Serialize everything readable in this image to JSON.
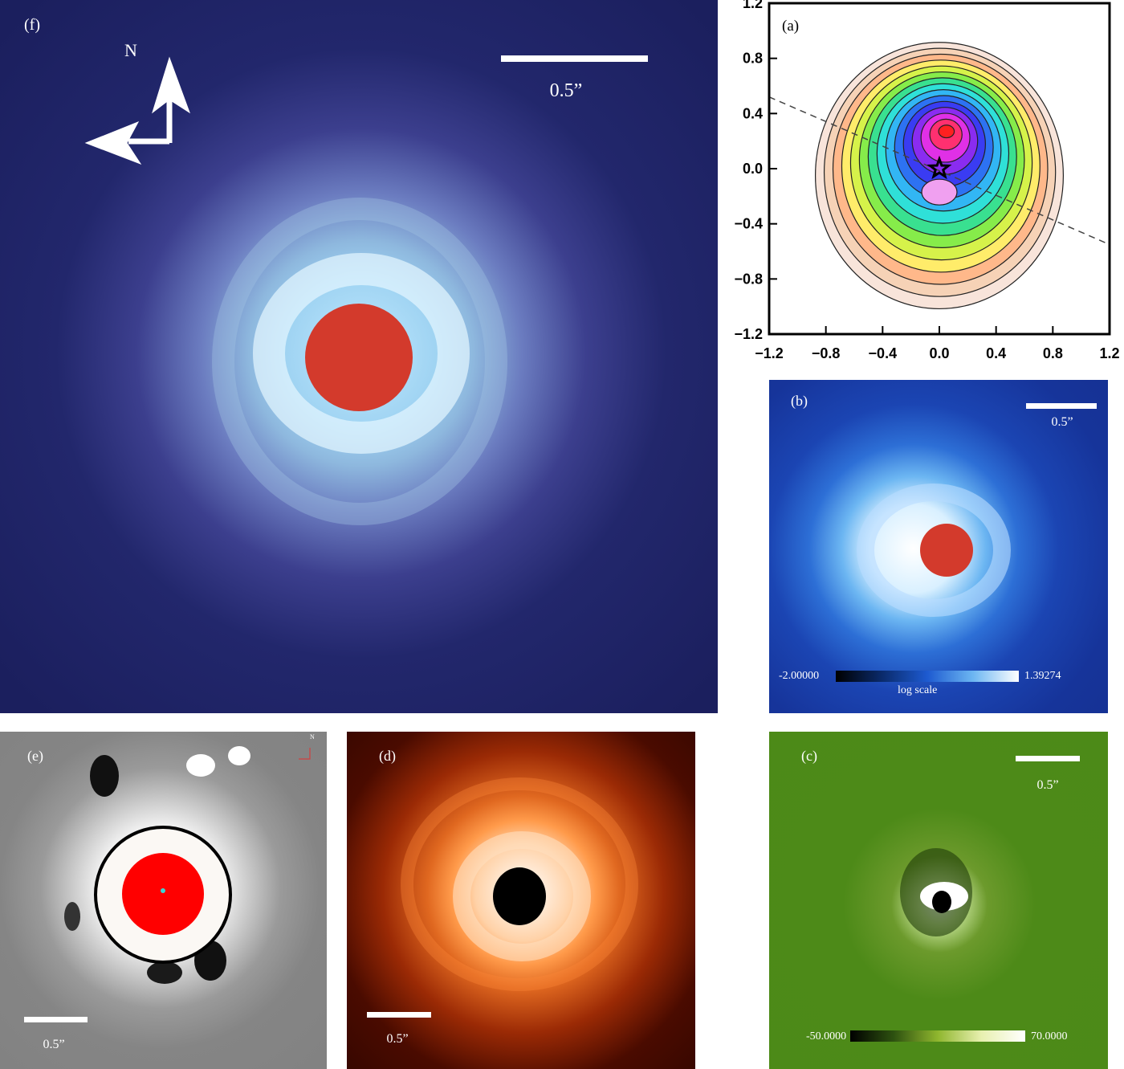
{
  "panels": {
    "f": {
      "label": "(f)",
      "north": "N",
      "scale": "0.5”",
      "colors": {
        "background": "#1b1f5e",
        "glow": "#bfe9ff",
        "mask": "#d33a2c"
      }
    },
    "a": {
      "label": "(a)",
      "chart_data": {
        "type": "contour",
        "xlim": [
          -1.2,
          1.2
        ],
        "ylim": [
          -1.2,
          1.2
        ],
        "x_ticks": [
          "−1.2",
          "−0.8",
          "−0.4",
          "0.0",
          "0.4",
          "0.8",
          "1.2"
        ],
        "y_ticks": [
          "1.2",
          "0.8",
          "0.4",
          "0.0",
          "−0.4",
          "−0.8",
          "−1.2"
        ],
        "peak": {
          "x": 0.05,
          "y": 0.27
        },
        "secondary_peak": {
          "x": 0.0,
          "y": -0.17
        },
        "star": {
          "x": 0.0,
          "y": 0.0
        },
        "dashed_line": {
          "from": [
            -1.2,
            0.52
          ],
          "to": [
            1.2,
            -0.55
          ]
        },
        "levels": 14,
        "colors": [
          "#f8e4da",
          "#f6d2b6",
          "#ffb88a",
          "#ffec6a",
          "#d6f24a",
          "#86ec4a",
          "#39e090",
          "#2fe0d8",
          "#32b6f4",
          "#2d72f2",
          "#3a3cf2",
          "#8a2cf0",
          "#e030e6",
          "#ff3070",
          "#ff2020"
        ]
      }
    },
    "b": {
      "label": "(b)",
      "scale": "0.5”",
      "colorbar_min": "-2.00000",
      "colorbar_max": "1.39274",
      "colorbar_caption": "log scale",
      "colors": {
        "background": "#16349a",
        "mask": "#d33a2c"
      }
    },
    "e": {
      "label": "(e)",
      "scale": "0.5”",
      "north": "N",
      "colors": {
        "background": "#808080",
        "mask": "#ff0000",
        "center": "#3ad6d6"
      }
    },
    "d": {
      "label": "(d)",
      "scale": "0.5”",
      "colors": {
        "background": "#200300",
        "ring": "#ff9a4a"
      }
    },
    "c": {
      "label": "(c)",
      "scale": "0.5”",
      "colorbar_min": "-50.0000",
      "colorbar_max": "70.0000",
      "colors": {
        "background": "#4c8a17"
      }
    }
  }
}
